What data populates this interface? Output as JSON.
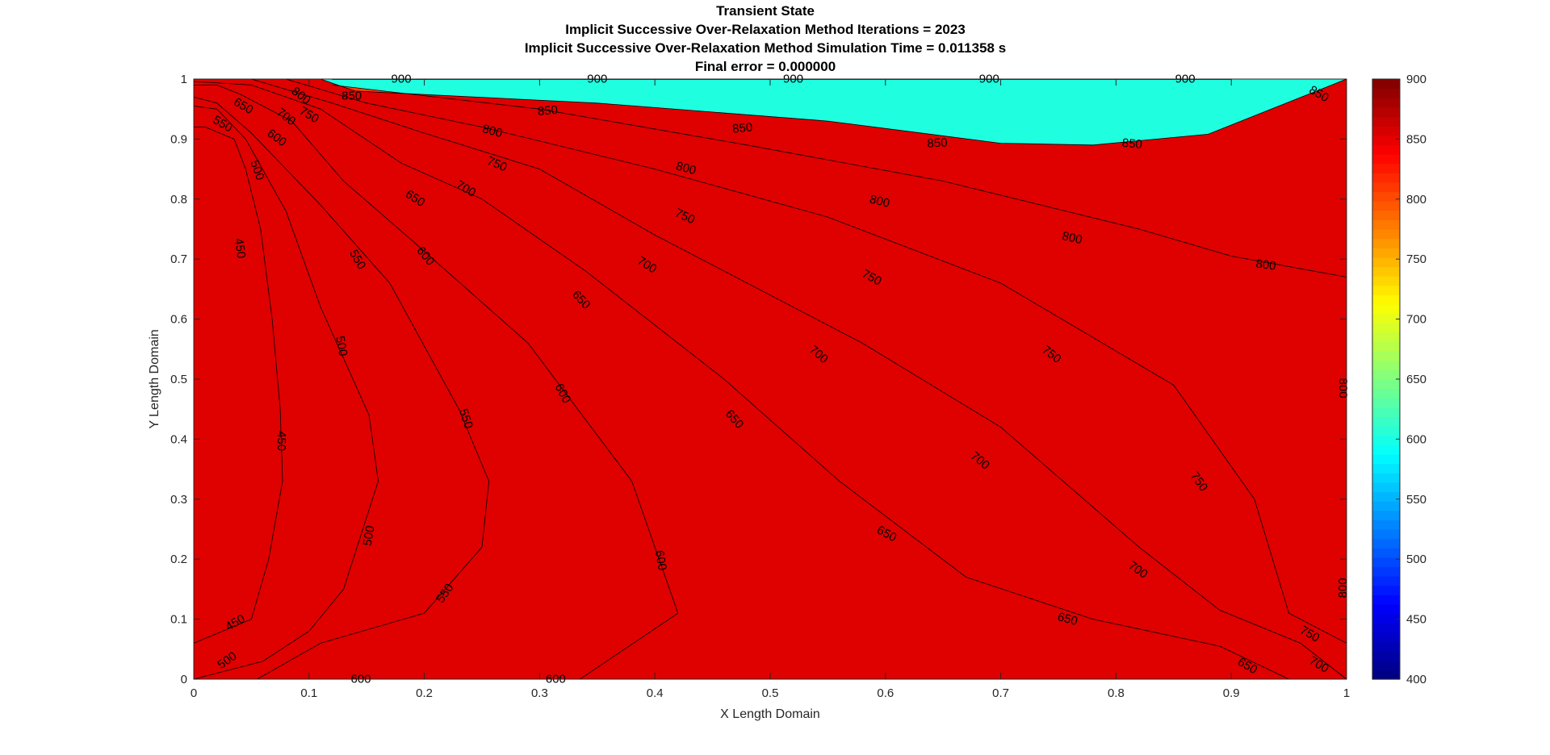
{
  "chart_data": {
    "type": "contour",
    "title": [
      "Transient State",
      "Implicit Successive Over-Relaxation Method Iterations = 2023",
      "Implicit Successive Over-Relaxation Method Simulation Time = 0.011358 s",
      "Final error = 0.000000"
    ],
    "xlabel": "X Length Domain",
    "ylabel": "Y Length Domain",
    "xlim": [
      0,
      1
    ],
    "ylim": [
      0,
      1
    ],
    "xticks": [
      "0",
      "0.1",
      "0.2",
      "0.3",
      "0.4",
      "0.5",
      "0.6",
      "0.7",
      "0.8",
      "0.9",
      "1"
    ],
    "yticks": [
      "0",
      "0.1",
      "0.2",
      "0.3",
      "0.4",
      "0.5",
      "0.6",
      "0.7",
      "0.8",
      "0.9",
      "1"
    ],
    "levels": [
      400,
      450,
      500,
      550,
      600,
      650,
      700,
      750,
      800,
      850,
      900
    ],
    "colorbar": {
      "range": [
        400,
        900
      ],
      "ticks": [
        "400",
        "450",
        "500",
        "550",
        "600",
        "650",
        "700",
        "750",
        "800",
        "850",
        "900"
      ],
      "colormap": "jet"
    },
    "band_colors": [
      "#00008f",
      "#0000ef",
      "#004fff",
      "#00bfff",
      "#1fffdf",
      "#8fff6f",
      "#efff0f",
      "#ffaf00",
      "#ff3f00",
      "#df0000"
    ],
    "contours": [
      {
        "level": 450,
        "points": [
          [
            0.0,
            0.06
          ],
          [
            0.05,
            0.1
          ],
          [
            0.065,
            0.2
          ],
          [
            0.077,
            0.33
          ],
          [
            0.075,
            0.45
          ],
          [
            0.068,
            0.6
          ],
          [
            0.058,
            0.75
          ],
          [
            0.045,
            0.85
          ],
          [
            0.035,
            0.9
          ],
          [
            0.01,
            0.92
          ],
          [
            0.0,
            0.92
          ]
        ]
      },
      {
        "level": 500,
        "points": [
          [
            0.0,
            0.0
          ],
          [
            0.06,
            0.03
          ],
          [
            0.1,
            0.08
          ],
          [
            0.13,
            0.15
          ],
          [
            0.16,
            0.33
          ],
          [
            0.152,
            0.44
          ],
          [
            0.11,
            0.62
          ],
          [
            0.08,
            0.78
          ],
          [
            0.045,
            0.9
          ],
          [
            0.02,
            0.95
          ],
          [
            0.0,
            0.955
          ]
        ]
      },
      {
        "level": 550,
        "points": [
          [
            0.055,
            0.0
          ],
          [
            0.11,
            0.06
          ],
          [
            0.2,
            0.11
          ],
          [
            0.25,
            0.22
          ],
          [
            0.256,
            0.33
          ],
          [
            0.23,
            0.45
          ],
          [
            0.17,
            0.66
          ],
          [
            0.11,
            0.79
          ],
          [
            0.05,
            0.91
          ],
          [
            0.02,
            0.96
          ],
          [
            0.0,
            0.97
          ]
        ]
      },
      {
        "level": 600,
        "points": [
          [
            0.11,
            0.0
          ],
          [
            0.335,
            0.0
          ],
          [
            0.42,
            0.11
          ],
          [
            0.38,
            0.33
          ],
          [
            0.29,
            0.56
          ],
          [
            0.19,
            0.73
          ],
          [
            0.13,
            0.83
          ],
          [
            0.085,
            0.93
          ],
          [
            0.04,
            0.975
          ],
          [
            0.02,
            0.99
          ],
          [
            0.0,
            0.99
          ]
        ]
      },
      {
        "level": 650,
        "points": [
          [
            0.0,
            0.996
          ],
          [
            0.05,
            0.99
          ],
          [
            0.11,
            0.95
          ],
          [
            0.18,
            0.86
          ],
          [
            0.25,
            0.8
          ],
          [
            0.34,
            0.68
          ],
          [
            0.46,
            0.5
          ],
          [
            0.56,
            0.33
          ],
          [
            0.67,
            0.17
          ],
          [
            0.78,
            0.1
          ],
          [
            0.89,
            0.055
          ],
          [
            0.95,
            0.0
          ]
        ]
      },
      {
        "level": 700,
        "points": [
          [
            0.05,
            1.0
          ],
          [
            0.12,
            0.96
          ],
          [
            0.2,
            0.91
          ],
          [
            0.3,
            0.85
          ],
          [
            0.4,
            0.74
          ],
          [
            0.58,
            0.56
          ],
          [
            0.7,
            0.42
          ],
          [
            0.82,
            0.22
          ],
          [
            0.89,
            0.115
          ],
          [
            0.96,
            0.06
          ],
          [
            1.0,
            0.0
          ]
        ]
      },
      {
        "level": 750,
        "points": [
          [
            0.08,
            1.0
          ],
          [
            0.15,
            0.96
          ],
          [
            0.25,
            0.92
          ],
          [
            0.4,
            0.85
          ],
          [
            0.55,
            0.77
          ],
          [
            0.7,
            0.66
          ],
          [
            0.85,
            0.49
          ],
          [
            0.92,
            0.3
          ],
          [
            0.95,
            0.11
          ],
          [
            1.0,
            0.06
          ]
        ]
      },
      {
        "level": 800,
        "points": [
          [
            0.12,
            0.99
          ],
          [
            0.3,
            0.95
          ],
          [
            0.48,
            0.89
          ],
          [
            0.65,
            0.83
          ],
          [
            0.82,
            0.75
          ],
          [
            0.9,
            0.705
          ],
          [
            1.0,
            0.67
          ]
        ]
      },
      {
        "level": 850,
        "points": [
          [
            0.11,
            1.0
          ],
          [
            0.14,
            0.98
          ],
          [
            0.35,
            0.96
          ],
          [
            0.55,
            0.93
          ],
          [
            0.7,
            0.893
          ],
          [
            0.78,
            0.89
          ],
          [
            0.88,
            0.908
          ],
          [
            1.0,
            1.0
          ]
        ]
      }
    ],
    "contour_labels": [
      {
        "text": "900",
        "x": 0.18,
        "y": 1.0,
        "angle": 0
      },
      {
        "text": "900",
        "x": 0.35,
        "y": 1.0,
        "angle": 0
      },
      {
        "text": "900",
        "x": 0.52,
        "y": 1.0,
        "angle": 0
      },
      {
        "text": "900",
        "x": 0.69,
        "y": 1.0,
        "angle": 0
      },
      {
        "text": "900",
        "x": 0.86,
        "y": 1.0,
        "angle": 0
      },
      {
        "text": "850",
        "x": 0.137,
        "y": 0.972,
        "angle": 0
      },
      {
        "text": "850",
        "x": 0.307,
        "y": 0.947,
        "angle": -5
      },
      {
        "text": "850",
        "x": 0.476,
        "y": 0.918,
        "angle": -5
      },
      {
        "text": "850",
        "x": 0.645,
        "y": 0.893,
        "angle": -3
      },
      {
        "text": "850",
        "x": 0.814,
        "y": 0.892,
        "angle": 5
      },
      {
        "text": "850",
        "x": 0.976,
        "y": 0.975,
        "angle": 30
      },
      {
        "text": "800",
        "x": 0.093,
        "y": 0.972,
        "angle": 38
      },
      {
        "text": "800",
        "x": 0.259,
        "y": 0.913,
        "angle": 15
      },
      {
        "text": "800",
        "x": 0.427,
        "y": 0.851,
        "angle": 15
      },
      {
        "text": "800",
        "x": 0.595,
        "y": 0.796,
        "angle": 14
      },
      {
        "text": "800",
        "x": 0.762,
        "y": 0.735,
        "angle": 13
      },
      {
        "text": "800",
        "x": 0.93,
        "y": 0.69,
        "angle": 8
      },
      {
        "text": "800",
        "x": 0.997,
        "y": 0.485,
        "angle": 90
      },
      {
        "text": "800",
        "x": 0.997,
        "y": 0.152,
        "angle": -90
      },
      {
        "text": "750",
        "x": 0.1,
        "y": 0.94,
        "angle": 30
      },
      {
        "text": "750",
        "x": 0.263,
        "y": 0.858,
        "angle": 23
      },
      {
        "text": "750",
        "x": 0.426,
        "y": 0.771,
        "angle": 25
      },
      {
        "text": "750",
        "x": 0.588,
        "y": 0.669,
        "angle": 28
      },
      {
        "text": "750",
        "x": 0.744,
        "y": 0.541,
        "angle": 38
      },
      {
        "text": "750",
        "x": 0.872,
        "y": 0.329,
        "angle": 55
      },
      {
        "text": "750",
        "x": 0.968,
        "y": 0.075,
        "angle": 30
      },
      {
        "text": "700",
        "x": 0.08,
        "y": 0.937,
        "angle": 38
      },
      {
        "text": "700",
        "x": 0.236,
        "y": 0.817,
        "angle": 30
      },
      {
        "text": "700",
        "x": 0.393,
        "y": 0.69,
        "angle": 32
      },
      {
        "text": "700",
        "x": 0.542,
        "y": 0.541,
        "angle": 40
      },
      {
        "text": "700",
        "x": 0.682,
        "y": 0.364,
        "angle": 40
      },
      {
        "text": "700",
        "x": 0.819,
        "y": 0.182,
        "angle": 35
      },
      {
        "text": "700",
        "x": 0.976,
        "y": 0.024,
        "angle": 30
      },
      {
        "text": "650",
        "x": 0.043,
        "y": 0.955,
        "angle": 30
      },
      {
        "text": "650",
        "x": 0.192,
        "y": 0.801,
        "angle": 33
      },
      {
        "text": "650",
        "x": 0.336,
        "y": 0.632,
        "angle": 47
      },
      {
        "text": "650",
        "x": 0.469,
        "y": 0.433,
        "angle": 48
      },
      {
        "text": "650",
        "x": 0.601,
        "y": 0.242,
        "angle": 28
      },
      {
        "text": "650",
        "x": 0.758,
        "y": 0.1,
        "angle": 15
      },
      {
        "text": "650",
        "x": 0.914,
        "y": 0.022,
        "angle": 30
      },
      {
        "text": "600",
        "x": 0.072,
        "y": 0.902,
        "angle": 36
      },
      {
        "text": "600",
        "x": 0.201,
        "y": 0.705,
        "angle": 50
      },
      {
        "text": "600",
        "x": 0.32,
        "y": 0.476,
        "angle": 62
      },
      {
        "text": "600",
        "x": 0.405,
        "y": 0.198,
        "angle": 80
      },
      {
        "text": "600",
        "x": 0.145,
        "y": 0.0,
        "angle": 0
      },
      {
        "text": "600",
        "x": 0.314,
        "y": 0.0,
        "angle": 0
      },
      {
        "text": "550",
        "x": 0.025,
        "y": 0.925,
        "angle": 30
      },
      {
        "text": "550",
        "x": 0.142,
        "y": 0.699,
        "angle": 60
      },
      {
        "text": "550",
        "x": 0.236,
        "y": 0.434,
        "angle": 72
      },
      {
        "text": "550",
        "x": 0.218,
        "y": 0.143,
        "angle": -55
      },
      {
        "text": "500",
        "x": 0.055,
        "y": 0.848,
        "angle": 70
      },
      {
        "text": "500",
        "x": 0.128,
        "y": 0.555,
        "angle": 80
      },
      {
        "text": "500",
        "x": 0.152,
        "y": 0.239,
        "angle": -80
      },
      {
        "text": "500",
        "x": 0.029,
        "y": 0.031,
        "angle": -35
      },
      {
        "text": "450",
        "x": 0.04,
        "y": 0.718,
        "angle": 82
      },
      {
        "text": "450",
        "x": 0.076,
        "y": 0.397,
        "angle": 90
      },
      {
        "text": "450",
        "x": 0.036,
        "y": 0.094,
        "angle": -30
      }
    ]
  }
}
